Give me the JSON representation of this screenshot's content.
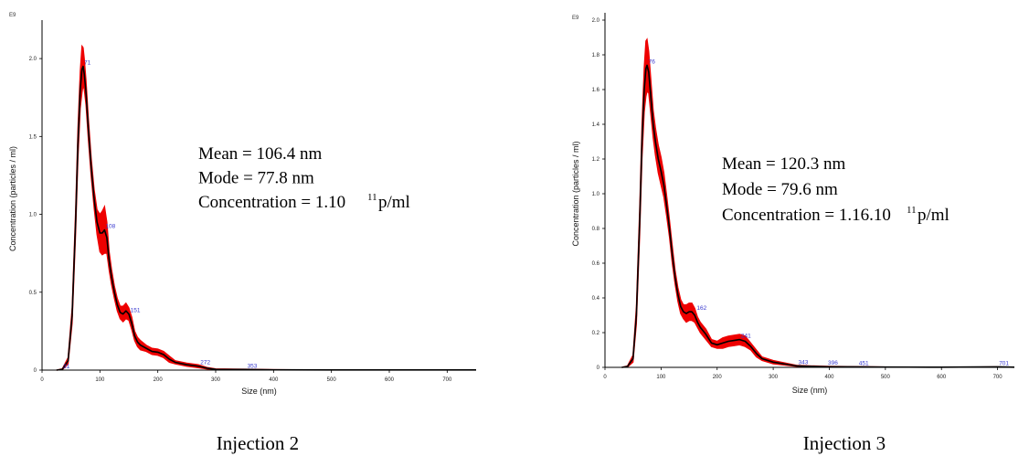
{
  "chart_data": [
    {
      "type": "area",
      "caption": "Injection 2",
      "xlabel": "Size (nm)",
      "ylabel": "Concentration (particles / ml)",
      "y_exponent_label": "E9",
      "xlim": [
        0,
        750
      ],
      "ylim": [
        0,
        2.2
      ],
      "x_ticks": [
        0,
        100,
        200,
        300,
        400,
        500,
        600,
        700
      ],
      "y_ticks": [
        0,
        0.5,
        1.0,
        1.5,
        2.0
      ],
      "y_tick_labels": [
        "0",
        "0.5",
        "1.0",
        "1.5",
        "2.0"
      ],
      "series": [
        {
          "color": "#000000",
          "x": [
            25,
            35,
            45,
            52,
            58,
            62,
            66,
            69,
            71,
            73,
            76,
            80,
            85,
            90,
            95,
            100,
            104,
            108,
            112,
            116,
            120,
            125,
            130,
            135,
            140,
            145,
            150,
            155,
            160,
            165,
            170,
            180,
            190,
            200,
            210,
            220,
            230,
            250,
            270,
            285,
            300,
            350,
            400,
            500,
            600,
            750
          ],
          "y": [
            0,
            0.005,
            0.06,
            0.35,
            0.95,
            1.45,
            1.8,
            1.93,
            1.95,
            1.9,
            1.78,
            1.55,
            1.3,
            1.1,
            0.95,
            0.88,
            0.88,
            0.9,
            0.85,
            0.7,
            0.6,
            0.5,
            0.42,
            0.37,
            0.36,
            0.38,
            0.36,
            0.3,
            0.22,
            0.18,
            0.16,
            0.14,
            0.12,
            0.115,
            0.1,
            0.07,
            0.05,
            0.035,
            0.025,
            0.012,
            0.005,
            0.004,
            0.002,
            0.001,
            0.001,
            0.001
          ]
        }
      ],
      "error_band": {
        "color": "#ee0000",
        "x": [
          25,
          35,
          45,
          52,
          58,
          62,
          66,
          69,
          71,
          73,
          76,
          80,
          85,
          90,
          95,
          100,
          104,
          108,
          112,
          116,
          120,
          125,
          130,
          135,
          140,
          145,
          150,
          155,
          160,
          165,
          170,
          180,
          190,
          200,
          210,
          220,
          230,
          250,
          270,
          285,
          300,
          350,
          400,
          500,
          600,
          750
        ],
        "halfwidth": [
          0,
          0.003,
          0.02,
          0.05,
          0.08,
          0.1,
          0.12,
          0.15,
          0.12,
          0.1,
          0.08,
          0.07,
          0.06,
          0.06,
          0.08,
          0.12,
          0.14,
          0.15,
          0.1,
          0.06,
          0.05,
          0.04,
          0.04,
          0.04,
          0.05,
          0.05,
          0.04,
          0.04,
          0.03,
          0.03,
          0.03,
          0.02,
          0.02,
          0.02,
          0.02,
          0.02,
          0.01,
          0.01,
          0.01,
          0.005,
          0.003,
          0.002,
          0.001,
          0,
          0,
          0
        ]
      },
      "peak_labels": [
        {
          "text": "31",
          "x": 35,
          "y": 0.0
        },
        {
          "text": "71",
          "x": 71,
          "y": 1.95
        },
        {
          "text": "108",
          "x": 108,
          "y": 0.9
        },
        {
          "text": "151",
          "x": 151,
          "y": 0.36
        },
        {
          "text": "272",
          "x": 272,
          "y": 0.025
        },
        {
          "text": "353",
          "x": 353,
          "y": 0.004
        }
      ],
      "annotations": [
        "Mean = 106.4 nm",
        "Mode = 77.8 nm",
        "Concentration = 1.10",
        "11",
        " p/ml"
      ]
    },
    {
      "type": "area",
      "caption": "Injection 3",
      "xlabel": "Size (nm)",
      "ylabel": "Concentration (particles / ml)",
      "y_exponent_label": "E9",
      "xlim": [
        0,
        730
      ],
      "ylim": [
        0,
        2.0
      ],
      "x_ticks": [
        0,
        100,
        200,
        300,
        400,
        500,
        600,
        700
      ],
      "y_ticks": [
        0,
        0.2,
        0.4,
        0.6,
        0.8,
        1.0,
        1.2,
        1.4,
        1.6,
        1.8,
        2.0
      ],
      "y_tick_labels": [
        "0",
        "0.2",
        "0.4",
        "0.6",
        "0.8",
        "1.0",
        "1.2",
        "1.4",
        "1.6",
        "1.8",
        "2.0"
      ],
      "series": [
        {
          "color": "#000000",
          "x": [
            30,
            40,
            50,
            56,
            62,
            66,
            70,
            73,
            75,
            78,
            82,
            86,
            90,
            95,
            100,
            105,
            110,
            115,
            120,
            125,
            130,
            135,
            140,
            145,
            150,
            155,
            160,
            165,
            170,
            180,
            190,
            200,
            210,
            220,
            230,
            240,
            250,
            260,
            270,
            280,
            300,
            343,
            396,
            451,
            500,
            600,
            700,
            730
          ],
          "y": [
            0,
            0.005,
            0.05,
            0.3,
            0.85,
            1.3,
            1.6,
            1.72,
            1.74,
            1.7,
            1.55,
            1.4,
            1.3,
            1.2,
            1.13,
            1.05,
            0.93,
            0.8,
            0.65,
            0.52,
            0.42,
            0.35,
            0.32,
            0.31,
            0.32,
            0.32,
            0.3,
            0.26,
            0.23,
            0.19,
            0.14,
            0.13,
            0.14,
            0.15,
            0.155,
            0.16,
            0.15,
            0.12,
            0.08,
            0.05,
            0.03,
            0.008,
            0.004,
            0.003,
            0.002,
            0.001,
            0.003,
            0.001
          ]
        }
      ],
      "error_band": {
        "color": "#ee0000",
        "x": [
          30,
          40,
          50,
          56,
          62,
          66,
          70,
          73,
          75,
          78,
          82,
          86,
          90,
          95,
          100,
          105,
          110,
          115,
          120,
          125,
          130,
          135,
          140,
          145,
          150,
          155,
          160,
          165,
          170,
          180,
          190,
          200,
          210,
          220,
          230,
          240,
          250,
          260,
          270,
          280,
          300,
          343,
          396,
          451,
          500,
          600,
          700,
          730
        ],
        "halfwidth": [
          0,
          0.003,
          0.02,
          0.05,
          0.08,
          0.1,
          0.13,
          0.16,
          0.15,
          0.12,
          0.1,
          0.08,
          0.08,
          0.08,
          0.08,
          0.07,
          0.06,
          0.05,
          0.05,
          0.04,
          0.04,
          0.04,
          0.04,
          0.05,
          0.05,
          0.05,
          0.04,
          0.03,
          0.03,
          0.03,
          0.02,
          0.02,
          0.03,
          0.03,
          0.03,
          0.03,
          0.03,
          0.02,
          0.02,
          0.01,
          0.01,
          0.003,
          0.002,
          0.001,
          0,
          0,
          0,
          0
        ]
      },
      "peak_labels": [
        {
          "text": "76",
          "x": 76,
          "y": 1.74
        },
        {
          "text": "162",
          "x": 162,
          "y": 0.32
        },
        {
          "text": "241",
          "x": 241,
          "y": 0.16
        },
        {
          "text": "343",
          "x": 343,
          "y": 0.008
        },
        {
          "text": "396",
          "x": 396,
          "y": 0.004
        },
        {
          "text": "451",
          "x": 451,
          "y": 0.003
        },
        {
          "text": "701",
          "x": 701,
          "y": 0.003
        }
      ],
      "annotations": [
        "Mean = 120.3 nm",
        "Mode = 79.6 nm",
        "Concentration = 1.16.10",
        "11",
        " p/ml"
      ]
    }
  ]
}
